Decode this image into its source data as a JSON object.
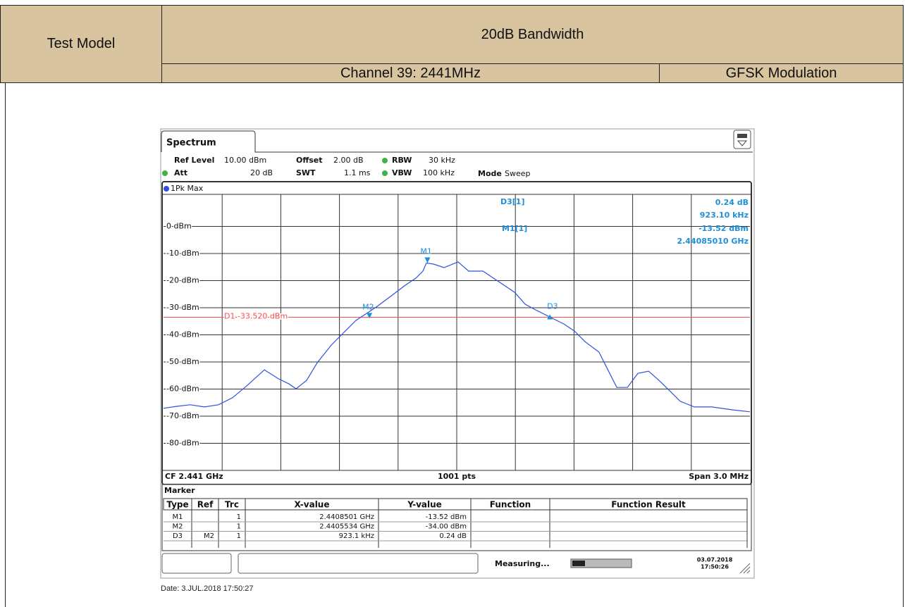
{
  "header": {
    "test_model": "Test Model",
    "title": "20dB Bandwidth",
    "channel": "Channel 39: 2441MHz",
    "modulation": "GFSK Modulation"
  },
  "screenshot": {
    "tab": "Spectrum",
    "settings": {
      "ref_level": "Ref Level",
      "ref_level_value": "10.00 dBm",
      "offset": "Offset",
      "offset_value": "2.00 dB",
      "rbw": "RBW",
      "rbw_value": "30 kHz",
      "att": "Att",
      "att_value": "20 dB",
      "swt": "SWT",
      "swt_value": "1.1 ms",
      "vbw": "VBW",
      "vbw_value": "100 kHz",
      "mode": "Mode",
      "mode_value": "Sweep"
    },
    "trace_label": "1Pk Max",
    "chart": {
      "type": "line",
      "color": "#2f4fe0",
      "x": [
        2.4395,
        2.439565,
        2.439637,
        2.439709,
        2.439781,
        2.439853,
        2.439926,
        2.440016,
        2.440088,
        2.440142,
        2.440178,
        2.440232,
        2.440286,
        2.440358,
        2.44043,
        2.440484,
        2.440539,
        2.440593,
        2.440665,
        2.440737,
        2.440791,
        2.440827,
        2.440845,
        2.440881,
        2.440935,
        2.441007,
        2.441061,
        2.441134,
        2.441188,
        2.441242,
        2.441296,
        2.44135,
        2.441404,
        2.441476,
        2.441548,
        2.441602,
        2.441656,
        2.441728,
        2.441764,
        2.441819,
        2.441873,
        2.441927,
        2.441981,
        2.442035,
        2.442089,
        2.442143,
        2.442215,
        2.442305,
        2.442414,
        2.4425
      ],
      "values": [
        -67.1,
        -66.4,
        -65.8,
        -66.6,
        -65.8,
        -63.2,
        -58.8,
        -52.9,
        -56.2,
        -58.1,
        -59.9,
        -56.8,
        -50.3,
        -43.8,
        -38.6,
        -34.7,
        -32.1,
        -29.5,
        -25.6,
        -21.7,
        -19.1,
        -16.5,
        -13.5,
        -13.9,
        -15.2,
        -13.1,
        -16.5,
        -16.5,
        -19.1,
        -21.7,
        -24.3,
        -28.7,
        -30.8,
        -33.4,
        -36,
        -38.6,
        -42.5,
        -46.4,
        -51.6,
        -59.4,
        -59.4,
        -54.2,
        -53.4,
        -56.8,
        -60.6,
        -64.5,
        -66.6,
        -66.6,
        -67.7,
        -68.4
      ],
      "xlim": [
        2.4395,
        2.4425
      ],
      "ylim": [
        -90,
        10
      ],
      "yticks": [
        {
          "value": 0,
          "label": "0 dBm"
        },
        {
          "value": -10,
          "label": "-10 dBm"
        },
        {
          "value": -20,
          "label": "-20 dBm"
        },
        {
          "value": -30,
          "label": "-30 dBm"
        },
        {
          "value": -40,
          "label": "-40 dBm"
        },
        {
          "value": -50,
          "label": "-50 dBm"
        },
        {
          "value": -60,
          "label": "-60 dBm"
        },
        {
          "value": -70,
          "label": "-70 dBm"
        },
        {
          "value": -80,
          "label": "-80 dBm"
        }
      ],
      "threshold": {
        "value": -33.52,
        "label": "D1 -33.520 dBm",
        "color": "#ff4a4a"
      },
      "marker_color": "#1e8fd8",
      "markers": [
        {
          "label": "M1",
          "x": 2.4408501,
          "y": -13.52
        },
        {
          "label": "M2",
          "x": 2.4405534,
          "y": -34.0
        },
        {
          "label": "D3",
          "x": 2.4414765,
          "y": -33.76
        }
      ]
    },
    "readout": {
      "d3": "D3[1]",
      "d3_level": "0.24 dB",
      "d3_freq": "923.10 kHz",
      "m1": "M1[1]",
      "m1_level": "-13.52 dBm",
      "m1_freq": "2.44085010 GHz"
    },
    "footer": {
      "cf": "CF 2.441 GHz",
      "pts": "1001 pts",
      "span": "Span 3.0 MHz"
    },
    "marker_table": {
      "title": "Marker",
      "columns": [
        "Type",
        "Ref",
        "Trc",
        "X-value",
        "Y-value",
        "Function",
        "Function Result"
      ],
      "rows": [
        {
          "type": "M1",
          "trc": "1",
          "x": "2.4408501 GHz",
          "y": "-13.52 dBm"
        },
        {
          "type": "M2",
          "trc": "1",
          "x": "2.4405534 GHz",
          "y": "-34.00 dBm"
        },
        {
          "type": "D3",
          "ref": "M2",
          "trc": "1",
          "x": "923.1 kHz",
          "y": "0.24 dB"
        }
      ]
    },
    "status": "Measuring...",
    "timestamp_date": "03.07.2018",
    "timestamp_time": "17:50:26"
  },
  "date": "Date: 3.JUL.2018  17:50:27"
}
